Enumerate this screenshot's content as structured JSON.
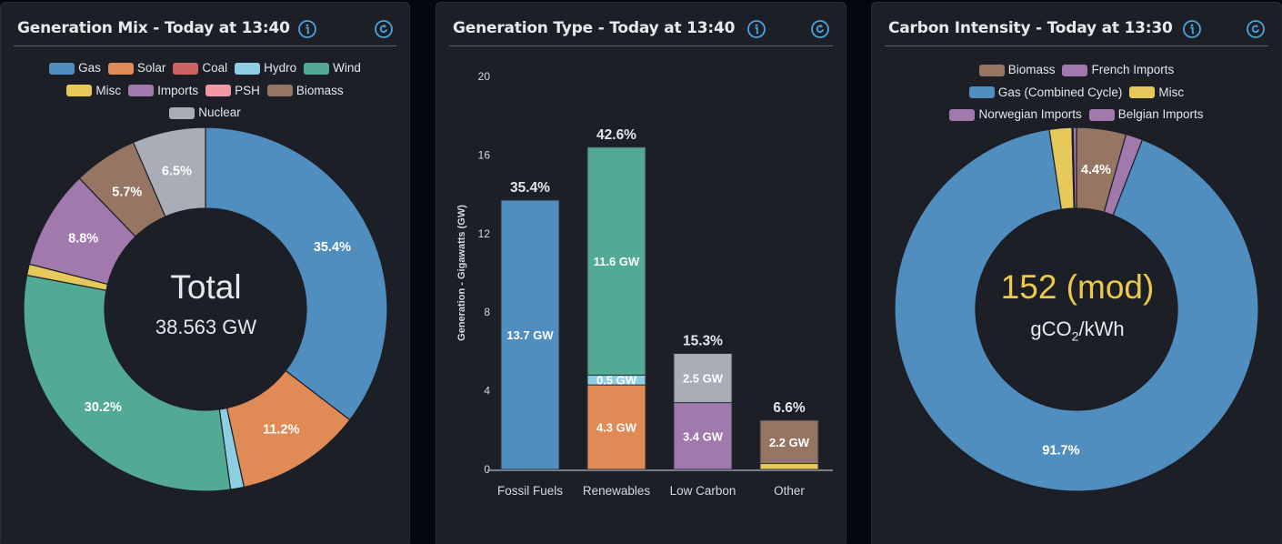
{
  "panels": {
    "generation_mix": {
      "title": "Generation Mix - Today at 13:40",
      "info_icon": "info-icon",
      "refresh_icon": "refresh-icon",
      "center_title": "Total",
      "center_value": "38.563 GW"
    },
    "generation_type": {
      "title": "Generation Type - Today at 13:40",
      "info_icon": "info-icon",
      "refresh_icon": "refresh-icon"
    },
    "carbon_intensity": {
      "title": "Carbon Intensity - Today at 13:30",
      "info_icon": "info-icon",
      "refresh_icon": "refresh-icon",
      "center_value": "152 (mod)",
      "center_unit_prefix": "gCO",
      "center_unit_sub": "2",
      "center_unit_suffix": "/kWh",
      "accent_color": "#ecc94b"
    }
  },
  "chart_data": [
    {
      "type": "pie",
      "variant": "doughnut",
      "title": "Generation Mix - Today at 13:40",
      "legend_position": "top",
      "legend": [
        [
          "Gas",
          "Solar",
          "Coal",
          "Hydro",
          "Wind"
        ],
        [
          "Misc",
          "Imports",
          "PSH",
          "Biomass"
        ],
        [
          "Nuclear"
        ]
      ],
      "slices": [
        {
          "label": "Gas",
          "value": 35.4,
          "display": "35.4%",
          "color": "#4f8ebe"
        },
        {
          "label": "Solar",
          "value": 11.2,
          "display": "11.2%",
          "color": "#e08a55"
        },
        {
          "label": "Coal",
          "value": 0.0,
          "display": "",
          "color": "#cc6362"
        },
        {
          "label": "Hydro",
          "value": 1.2,
          "display": "",
          "color": "#8ccfe2"
        },
        {
          "label": "Wind",
          "value": 30.2,
          "display": "30.2%",
          "color": "#52aa94"
        },
        {
          "label": "Misc",
          "value": 1.0,
          "display": "",
          "color": "#e6c95a"
        },
        {
          "label": "Imports",
          "value": 8.8,
          "display": "8.8%",
          "color": "#a279ad"
        },
        {
          "label": "PSH",
          "value": 0.0,
          "display": "",
          "color": "#f19aa5"
        },
        {
          "label": "Biomass",
          "value": 5.7,
          "display": "5.7%",
          "color": "#967662"
        },
        {
          "label": "Nuclear",
          "value": 6.5,
          "display": "6.5%",
          "color": "#a9adb7"
        }
      ]
    },
    {
      "type": "bar",
      "variant": "stacked",
      "title": "Generation Type - Today at 13:40",
      "xlabel": "",
      "ylabel": "Generation - Gigawatts (GW)",
      "ylim": [
        0,
        20
      ],
      "yticks": [
        "0",
        "4",
        "8",
        "12",
        "16",
        "20"
      ],
      "categories": [
        "Fossil Fuels",
        "Renewables",
        "Low Carbon",
        "Other"
      ],
      "totals_pct": [
        "35.4%",
        "42.6%",
        "15.3%",
        "6.6%"
      ],
      "stacks": [
        [
          {
            "name": "Gas",
            "value": 13.7,
            "label": "13.7 GW",
            "color": "#4f8ebe"
          }
        ],
        [
          {
            "name": "Solar",
            "value": 4.3,
            "label": "4.3 GW",
            "color": "#e08a55"
          },
          {
            "name": "Hydro",
            "value": 0.5,
            "label": "0.5 GW",
            "color": "#8ccfe2"
          },
          {
            "name": "Wind",
            "value": 11.6,
            "label": "11.6 GW",
            "color": "#52aa94"
          }
        ],
        [
          {
            "name": "Imports",
            "value": 3.4,
            "label": "3.4 GW",
            "color": "#a279ad"
          },
          {
            "name": "Nuclear",
            "value": 2.5,
            "label": "2.5 GW",
            "color": "#a9adb7"
          }
        ],
        [
          {
            "name": "Misc",
            "value": 0.3,
            "label": "",
            "color": "#e6c95a"
          },
          {
            "name": "Biomass",
            "value": 2.2,
            "label": "2.2 GW",
            "color": "#967662"
          }
        ]
      ]
    },
    {
      "type": "pie",
      "variant": "doughnut",
      "title": "Carbon Intensity - Today at 13:30",
      "legend_position": "top",
      "legend": [
        [
          {
            "label": "Biomass",
            "color": "#967662"
          },
          {
            "label": "French Imports",
            "color": "#a279ad"
          }
        ],
        [
          {
            "label": "Gas (Combined Cycle)",
            "color": "#4f8ebe"
          },
          {
            "label": "Misc",
            "color": "#e6c95a"
          }
        ],
        [
          {
            "label": "Norwegian Imports",
            "color": "#a279ad"
          },
          {
            "label": "Belgian Imports",
            "color": "#a279ad"
          }
        ]
      ],
      "slices": [
        {
          "label": "Biomass",
          "value": 4.4,
          "display": "4.4%",
          "color": "#967662"
        },
        {
          "label": "French Imports",
          "value": 1.5,
          "display": "",
          "color": "#a279ad"
        },
        {
          "label": "Gas (Combined Cycle)",
          "value": 91.7,
          "display": "91.7%",
          "color": "#4f8ebe"
        },
        {
          "label": "Misc",
          "value": 2.0,
          "display": "",
          "color": "#e6c95a"
        },
        {
          "label": "Norwegian Imports",
          "value": 0.1,
          "display": "",
          "color": "#a279ad"
        },
        {
          "label": "Belgian Imports",
          "value": 0.3,
          "display": "",
          "color": "#a279ad"
        }
      ]
    }
  ]
}
